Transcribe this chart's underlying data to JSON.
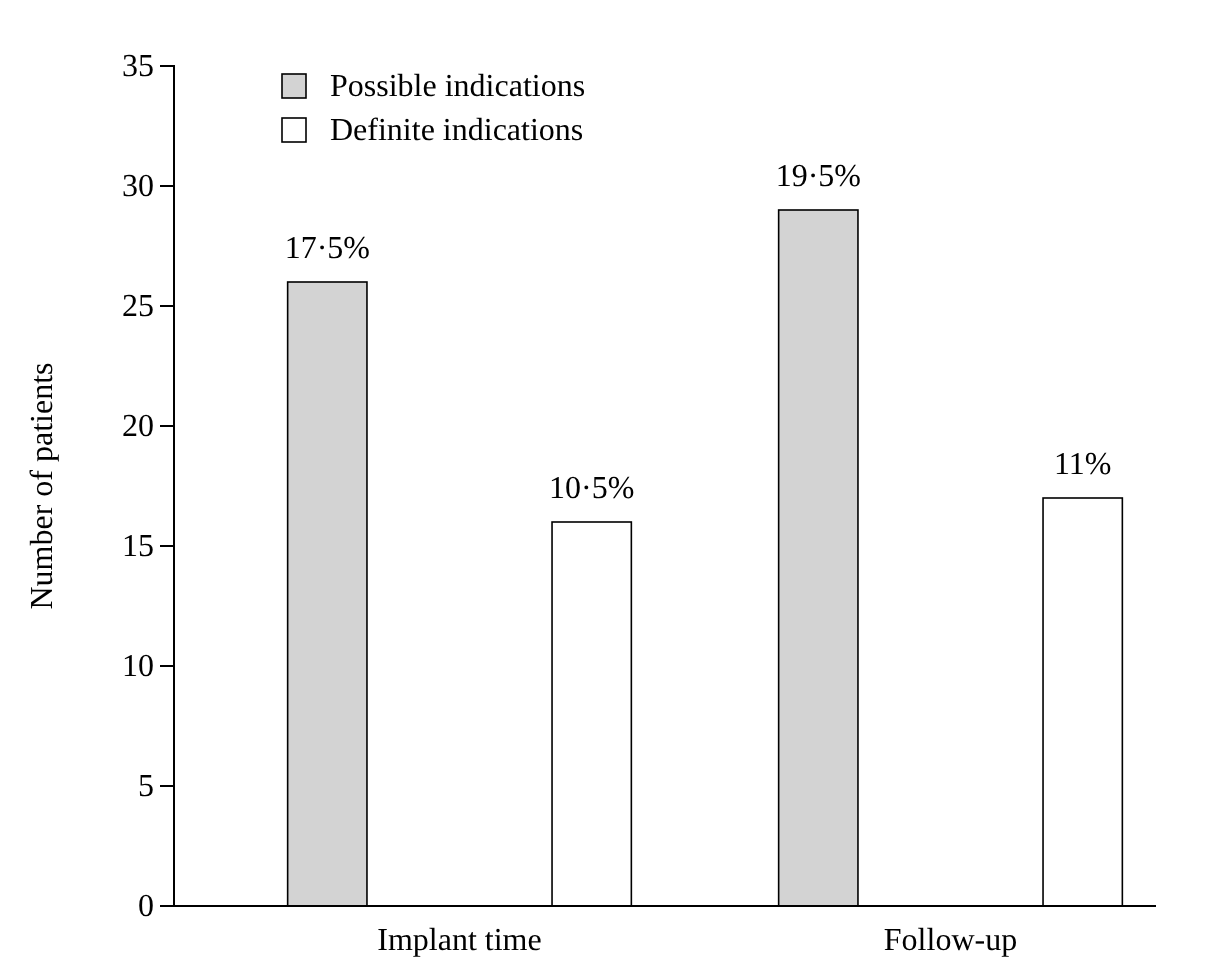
{
  "chart_data": {
    "type": "bar",
    "ylabel": "Number of patients",
    "categories": [
      "Implant time",
      "Follow-up"
    ],
    "series": [
      {
        "name": "Possible indications",
        "color": "#d3d3d3",
        "values": [
          26,
          29
        ]
      },
      {
        "name": "Definite indications",
        "color": "#ffffff",
        "values": [
          16,
          17
        ]
      }
    ],
    "annotations": [
      "17·5%",
      "10·5%",
      "19·5%",
      "11%"
    ],
    "ylim": [
      0,
      35
    ],
    "yticks": [
      0,
      5,
      10,
      15,
      20,
      25,
      30,
      35
    ],
    "grid": false,
    "legend": "top left"
  }
}
